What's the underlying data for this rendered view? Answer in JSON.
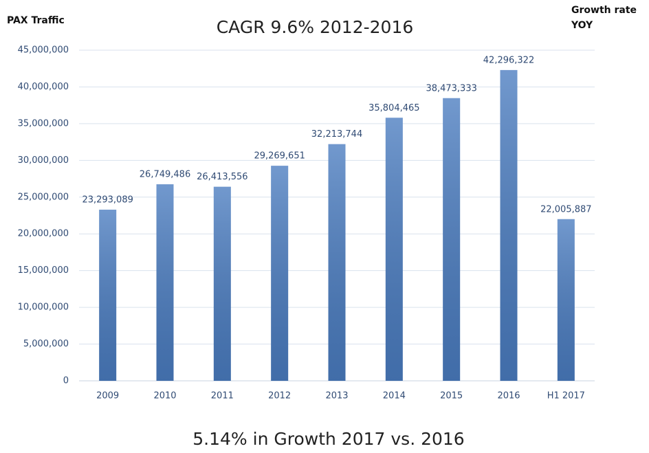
{
  "chart_data": {
    "type": "bar",
    "title": "CAGR 9.6% 2012-2016",
    "y_label": "PAX Traffic",
    "y2_label_lines": [
      "Growth rate",
      "YOY"
    ],
    "annotation": "5.14% in Growth 2017 vs. 2016",
    "categories": [
      "2009",
      "2010",
      "2011",
      "2012",
      "2013",
      "2014",
      "2015",
      "2016",
      "H1 2017"
    ],
    "values": [
      23293089,
      26749486,
      26413556,
      29269651,
      32213744,
      35804465,
      38473333,
      42296322,
      22005887
    ],
    "value_labels": [
      "23,293,089",
      "26,749,486",
      "26,413,556",
      "29,269,651",
      "32,213,744",
      "35,804,465",
      "38,473,333",
      "42,296,322",
      "22,005,887"
    ],
    "color": "#4a7cc0",
    "ylim": [
      0,
      45000000
    ],
    "yticks": [
      0,
      {
        "value": 5000000,
        "label": "5,000,000"
      },
      {
        "value": 10000000,
        "label": "10,000,000"
      },
      {
        "value": 15000000,
        "label": "15,000,000"
      },
      {
        "value": 20000000,
        "label": "20,000,000"
      },
      {
        "value": 25000000,
        "label": "25,000,000"
      },
      {
        "value": 30000000,
        "label": "30,000,000"
      },
      {
        "value": 35000000,
        "label": "35,000,000"
      },
      {
        "value": 40000000,
        "label": "40,000,000"
      },
      {
        "value": 45000000,
        "label": "45,000,000"
      }
    ],
    "grid": true
  }
}
